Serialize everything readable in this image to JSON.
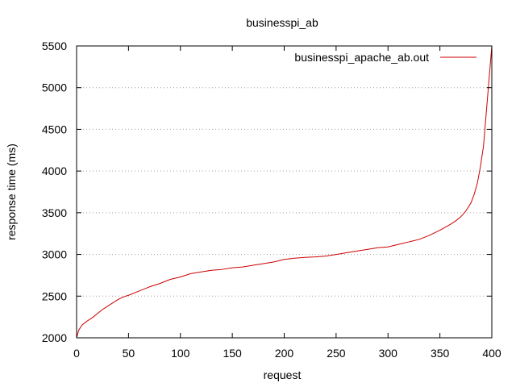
{
  "chart_data": {
    "type": "line",
    "title": "businesspi_ab",
    "xlabel": "request",
    "ylabel": "response time (ms)",
    "xlim": [
      0,
      400
    ],
    "ylim": [
      2000,
      5500
    ],
    "xticks": [
      0,
      50,
      100,
      150,
      200,
      250,
      300,
      350,
      400
    ],
    "yticks": [
      2000,
      2500,
      3000,
      3500,
      4000,
      4500,
      5000,
      5500
    ],
    "grid": "horizontal-dotted",
    "legend_position": "top-right",
    "series": [
      {
        "name": "businesspi_apache_ab.out",
        "color": "#cc0000",
        "x": [
          0,
          2,
          5,
          10,
          15,
          20,
          25,
          30,
          35,
          40,
          45,
          50,
          60,
          70,
          80,
          90,
          100,
          110,
          120,
          130,
          140,
          150,
          160,
          170,
          180,
          190,
          200,
          210,
          220,
          230,
          240,
          250,
          260,
          270,
          280,
          290,
          300,
          310,
          320,
          330,
          340,
          350,
          360,
          365,
          370,
          375,
          380,
          383,
          386,
          389,
          392,
          394,
          396,
          398,
          399,
          400
        ],
        "values": [
          2000,
          2090,
          2150,
          2200,
          2240,
          2290,
          2340,
          2380,
          2420,
          2460,
          2490,
          2510,
          2560,
          2610,
          2650,
          2700,
          2730,
          2770,
          2790,
          2810,
          2820,
          2840,
          2850,
          2870,
          2890,
          2910,
          2940,
          2955,
          2965,
          2970,
          2980,
          3000,
          3020,
          3040,
          3060,
          3080,
          3090,
          3120,
          3150,
          3180,
          3230,
          3290,
          3360,
          3400,
          3450,
          3520,
          3620,
          3720,
          3850,
          4050,
          4300,
          4600,
          4900,
          5200,
          5350,
          5500
        ]
      }
    ]
  }
}
